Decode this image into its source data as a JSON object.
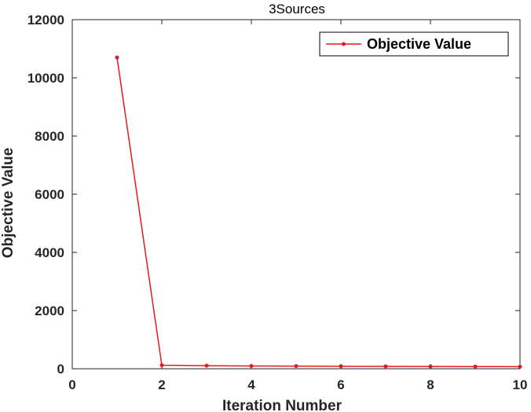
{
  "chart_data": {
    "type": "line",
    "title": "3Sources",
    "xlabel": "Iteration Number",
    "ylabel": "Objective Value",
    "xlim": [
      0,
      10
    ],
    "ylim": [
      0,
      12000
    ],
    "xticks": [
      "0",
      "2",
      "4",
      "6",
      "8",
      "10"
    ],
    "yticks": [
      "0",
      "2000",
      "4000",
      "6000",
      "8000",
      "10000",
      "12000"
    ],
    "grid": false,
    "legend_position": "top-right",
    "series": [
      {
        "name": "Objective Value",
        "color": "#e41a1c",
        "marker": "dot",
        "x": [
          1,
          2,
          3,
          4,
          5,
          6,
          7,
          8,
          9,
          10
        ],
        "y": [
          10700,
          120,
          105,
          95,
          90,
          85,
          80,
          78,
          75,
          72
        ]
      }
    ]
  }
}
